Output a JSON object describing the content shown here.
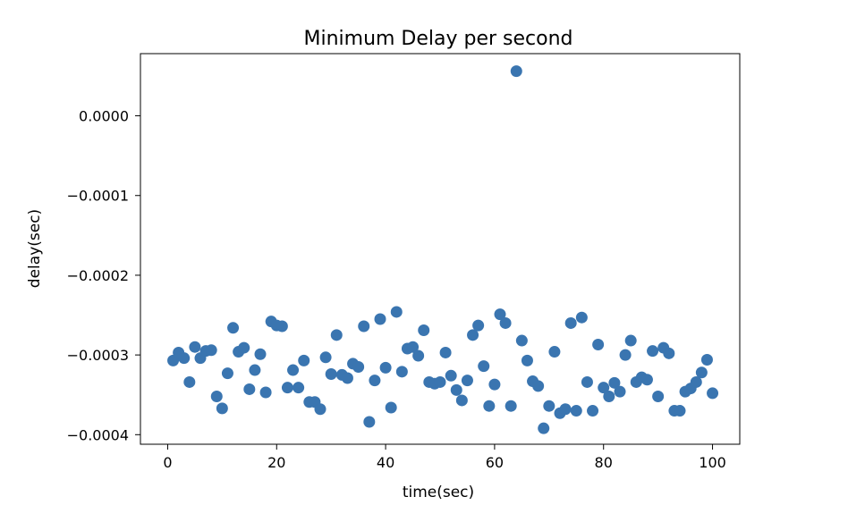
{
  "chart_data": {
    "type": "scatter",
    "title": "Minimum Delay per second",
    "xlabel": "time(sec)",
    "ylabel": "delay(sec)",
    "xlim": [
      -5,
      105
    ],
    "ylim": [
      -0.000412,
      7.8e-05
    ],
    "xticks": [
      0,
      20,
      40,
      60,
      80,
      100
    ],
    "xtick_labels": [
      "0",
      "20",
      "40",
      "60",
      "80",
      "100"
    ],
    "yticks": [
      0.0,
      -0.0001,
      -0.0002,
      -0.0003,
      -0.0004
    ],
    "ytick_labels": [
      "0.0000",
      "−0.0001",
      "−0.0002",
      "−0.0003",
      "−0.0004"
    ],
    "grid": false,
    "marker_color": "#3a75b0",
    "points": [
      [
        1,
        -0.000307
      ],
      [
        2,
        -0.000297
      ],
      [
        3,
        -0.000304
      ],
      [
        4,
        -0.000334
      ],
      [
        5,
        -0.00029
      ],
      [
        6,
        -0.000304
      ],
      [
        7,
        -0.000295
      ],
      [
        8,
        -0.000294
      ],
      [
        9,
        -0.000352
      ],
      [
        10,
        -0.000367
      ],
      [
        11,
        -0.000323
      ],
      [
        12,
        -0.000266
      ],
      [
        13,
        -0.000296
      ],
      [
        14,
        -0.000291
      ],
      [
        15,
        -0.000343
      ],
      [
        16,
        -0.000319
      ],
      [
        17,
        -0.000299
      ],
      [
        18,
        -0.000347
      ],
      [
        19,
        -0.000258
      ],
      [
        20,
        -0.000263
      ],
      [
        21,
        -0.000264
      ],
      [
        22,
        -0.000341
      ],
      [
        23,
        -0.000319
      ],
      [
        24,
        -0.000341
      ],
      [
        25,
        -0.000307
      ],
      [
        26,
        -0.000359
      ],
      [
        27,
        -0.000359
      ],
      [
        28,
        -0.000368
      ],
      [
        29,
        -0.000303
      ],
      [
        30,
        -0.000324
      ],
      [
        31,
        -0.000275
      ],
      [
        32,
        -0.000325
      ],
      [
        33,
        -0.000329
      ],
      [
        34,
        -0.000311
      ],
      [
        35,
        -0.000315
      ],
      [
        36,
        -0.000264
      ],
      [
        37,
        -0.000384
      ],
      [
        38,
        -0.000332
      ],
      [
        39,
        -0.000255
      ],
      [
        40,
        -0.000316
      ],
      [
        41,
        -0.000366
      ],
      [
        42,
        -0.000246
      ],
      [
        43,
        -0.000321
      ],
      [
        44,
        -0.000292
      ],
      [
        45,
        -0.00029
      ],
      [
        46,
        -0.000301
      ],
      [
        47,
        -0.000269
      ],
      [
        48,
        -0.000334
      ],
      [
        49,
        -0.000336
      ],
      [
        50,
        -0.000334
      ],
      [
        51,
        -0.000297
      ],
      [
        52,
        -0.000326
      ],
      [
        53,
        -0.000344
      ],
      [
        54,
        -0.000357
      ],
      [
        55,
        -0.000332
      ],
      [
        56,
        -0.000275
      ],
      [
        57,
        -0.000263
      ],
      [
        58,
        -0.000314
      ],
      [
        59,
        -0.000364
      ],
      [
        60,
        -0.000337
      ],
      [
        61,
        -0.000249
      ],
      [
        62,
        -0.00026
      ],
      [
        63,
        -0.000364
      ],
      [
        64,
        5.6e-05
      ],
      [
        65,
        -0.000282
      ],
      [
        66,
        -0.000307
      ],
      [
        67,
        -0.000333
      ],
      [
        68,
        -0.000339
      ],
      [
        69,
        -0.000392
      ],
      [
        70,
        -0.000364
      ],
      [
        71,
        -0.000296
      ],
      [
        72,
        -0.000373
      ],
      [
        73,
        -0.000368
      ],
      [
        74,
        -0.00026
      ],
      [
        75,
        -0.00037
      ],
      [
        76,
        -0.000253
      ],
      [
        77,
        -0.000334
      ],
      [
        78,
        -0.00037
      ],
      [
        79,
        -0.000287
      ],
      [
        80,
        -0.000341
      ],
      [
        81,
        -0.000352
      ],
      [
        82,
        -0.000335
      ],
      [
        83,
        -0.000346
      ],
      [
        84,
        -0.0003
      ],
      [
        85,
        -0.000282
      ],
      [
        86,
        -0.000334
      ],
      [
        87,
        -0.000328
      ],
      [
        88,
        -0.000331
      ],
      [
        89,
        -0.000295
      ],
      [
        90,
        -0.000352
      ],
      [
        91,
        -0.000291
      ],
      [
        92,
        -0.000298
      ],
      [
        93,
        -0.00037
      ],
      [
        94,
        -0.00037
      ],
      [
        95,
        -0.000346
      ],
      [
        96,
        -0.000342
      ],
      [
        97,
        -0.000334
      ],
      [
        98,
        -0.000322
      ],
      [
        99,
        -0.000306
      ],
      [
        100,
        -0.000348
      ]
    ]
  }
}
